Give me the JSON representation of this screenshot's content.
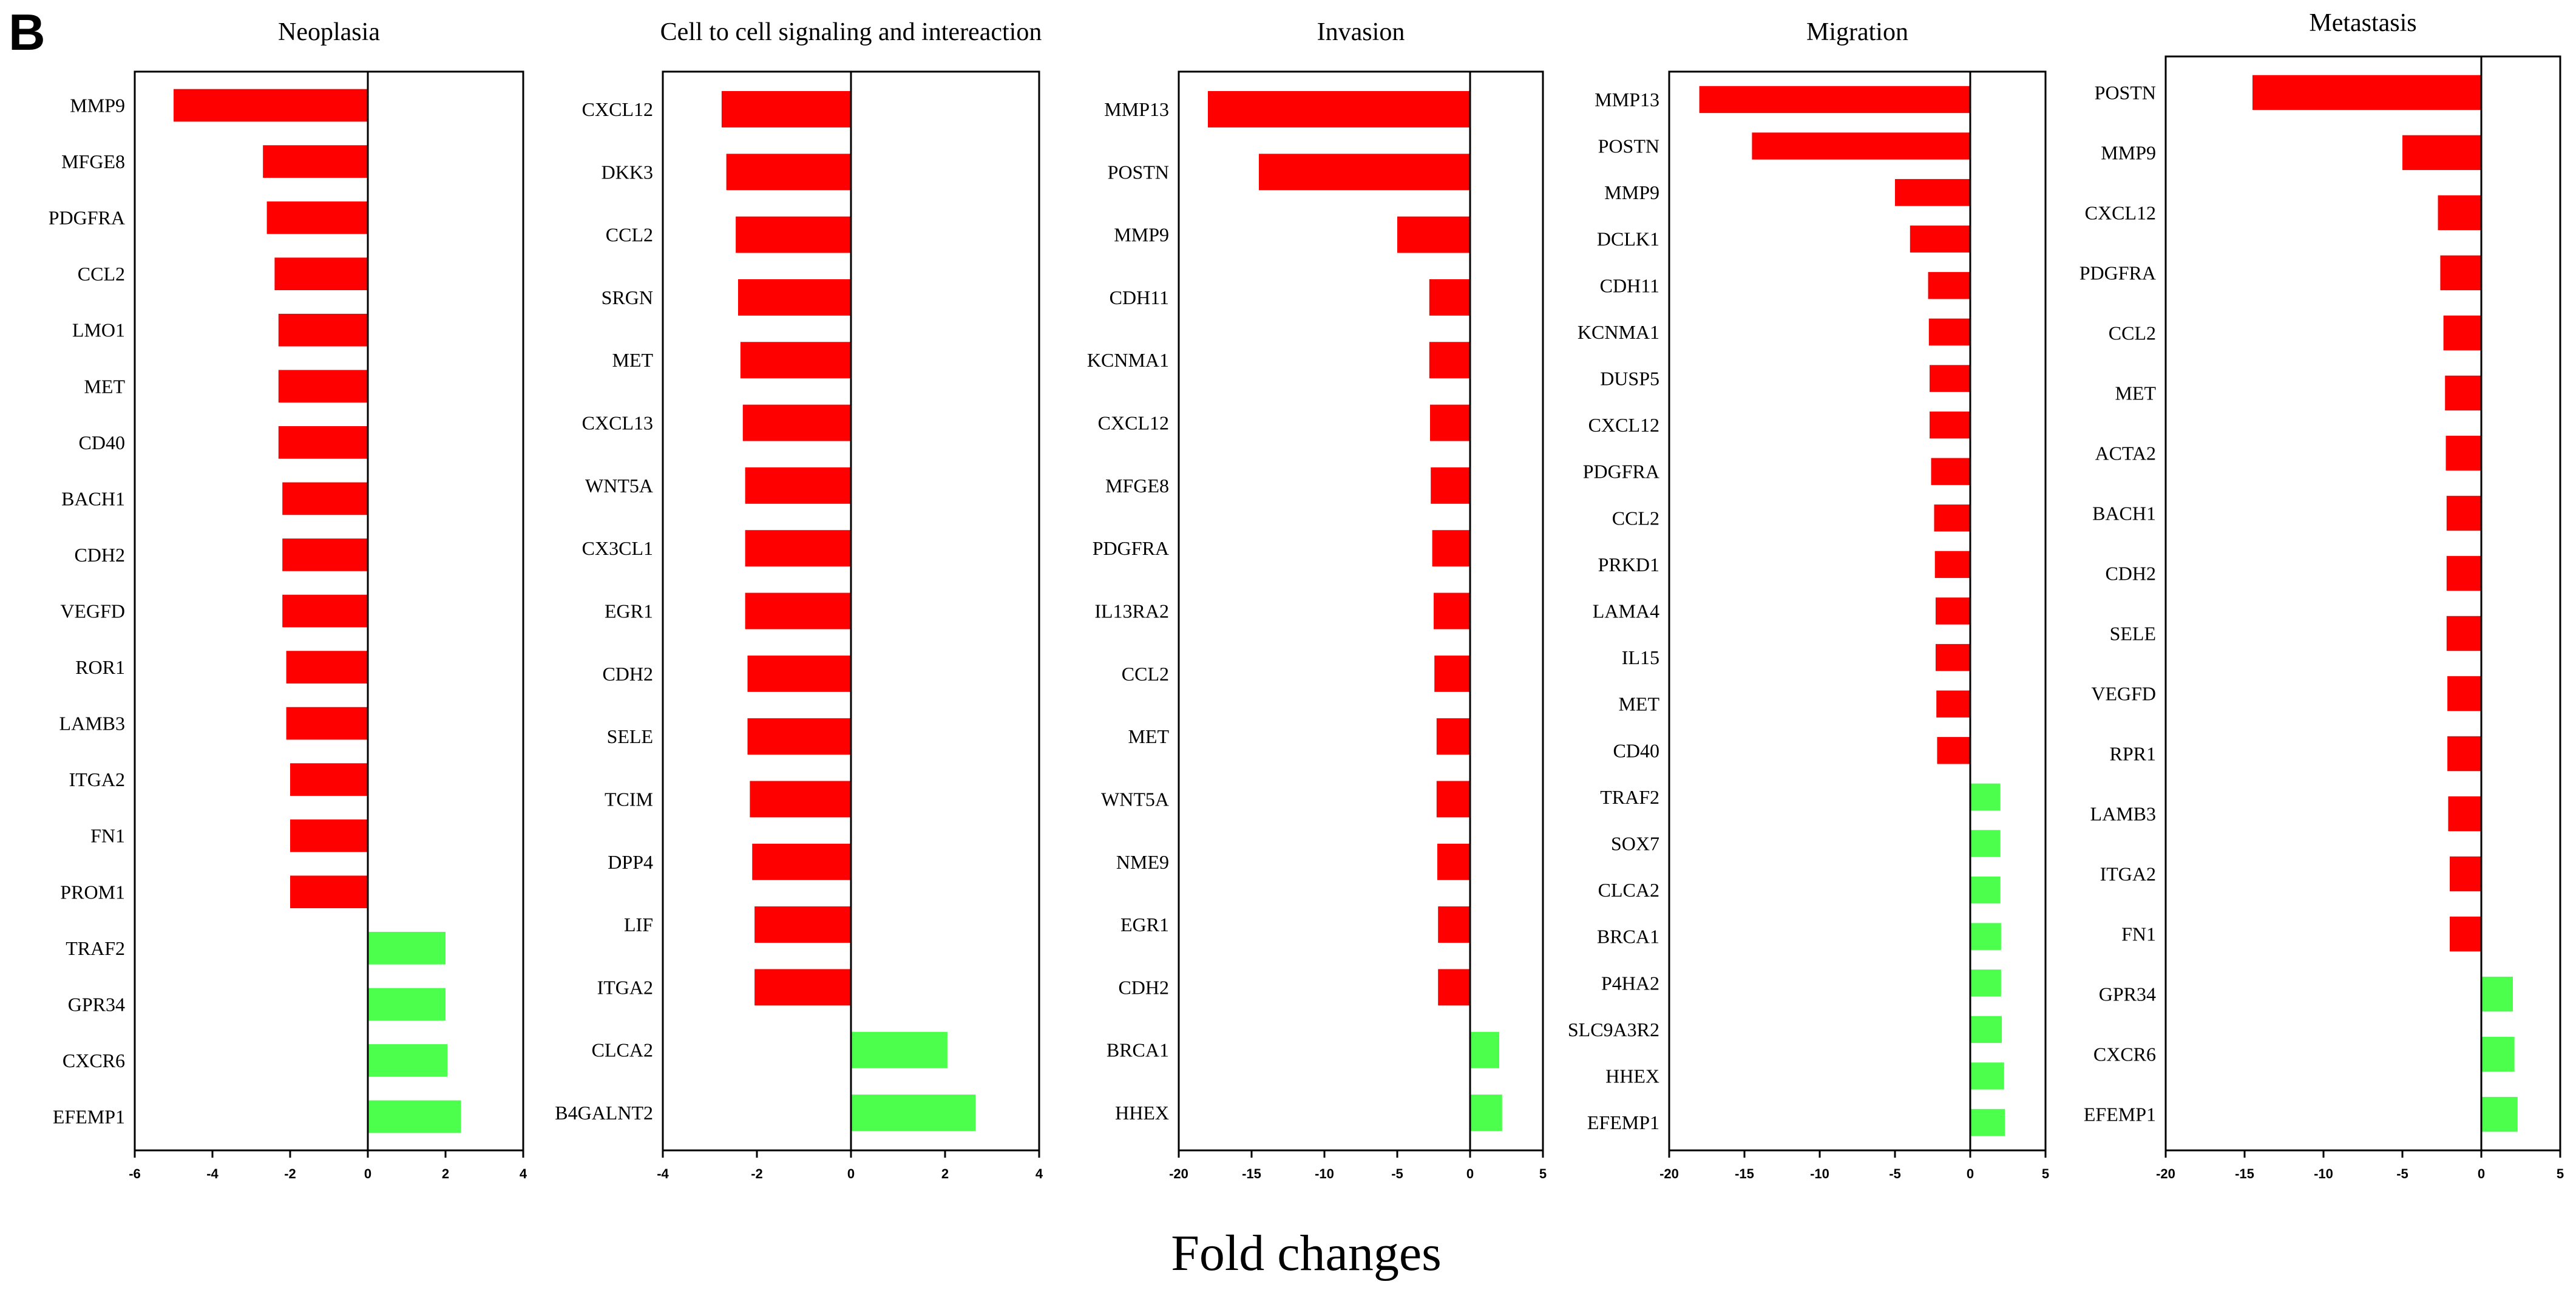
{
  "panel_letter": "B",
  "x_axis_title": "Fold changes",
  "colors": {
    "negative": "#ff0000",
    "positive": "#4dff4d",
    "axis": "#000000"
  },
  "chart_data": [
    {
      "type": "bar",
      "orientation": "horizontal",
      "title": "Neoplasia",
      "xlim": [
        -6,
        4
      ],
      "xticks": [
        -6,
        -4,
        -2,
        0,
        2,
        4
      ],
      "categories": [
        "MMP9",
        "MFGE8",
        "PDGFRA",
        "CCL2",
        "LMO1",
        "MET",
        "CD40",
        "BACH1",
        "CDH2",
        "VEGFD",
        "ROR1",
        "LAMB3",
        "ITGA2",
        "FN1",
        "PROM1",
        "TRAF2",
        "GPR34",
        "CXCR6",
        "EFEMP1"
      ],
      "values": [
        -5.0,
        -2.7,
        -2.6,
        -2.4,
        -2.3,
        -2.3,
        -2.3,
        -2.2,
        -2.2,
        -2.2,
        -2.1,
        -2.1,
        -2.0,
        -2.0,
        -2.0,
        2.0,
        2.0,
        2.05,
        2.4
      ]
    },
    {
      "type": "bar",
      "orientation": "horizontal",
      "title": "Cell to cell signaling and intereaction",
      "xlim": [
        -4,
        4
      ],
      "xticks": [
        -4,
        -2,
        0,
        2,
        4
      ],
      "categories": [
        "CXCL12",
        "DKK3",
        "CCL2",
        "SRGN",
        "MET",
        "CXCL13",
        "WNT5A",
        "CX3CL1",
        "EGR1",
        "CDH2",
        "SELE",
        "TCIM",
        "DPP4",
        "LIF",
        "ITGA2",
        "CLCA2",
        "B4GALNT2"
      ],
      "values": [
        -2.75,
        -2.65,
        -2.45,
        -2.4,
        -2.35,
        -2.3,
        -2.25,
        -2.25,
        -2.25,
        -2.2,
        -2.2,
        -2.15,
        -2.1,
        -2.05,
        -2.05,
        2.05,
        2.65
      ]
    },
    {
      "type": "bar",
      "orientation": "horizontal",
      "title": "Invasion",
      "xlim": [
        -20,
        5
      ],
      "xticks": [
        -20,
        -15,
        -10,
        -5,
        0,
        5
      ],
      "categories": [
        "MMP13",
        "POSTN",
        "MMP9",
        "CDH11",
        "KCNMA1",
        "CXCL12",
        "MFGE8",
        "PDGFRA",
        "IL13RA2",
        "CCL2",
        "MET",
        "WNT5A",
        "NME9",
        "EGR1",
        "CDH2",
        "BRCA1",
        "HHEX"
      ],
      "values": [
        -18.0,
        -14.5,
        -5.0,
        -2.8,
        -2.8,
        -2.75,
        -2.7,
        -2.6,
        -2.5,
        -2.45,
        -2.3,
        -2.3,
        -2.25,
        -2.2,
        -2.2,
        2.0,
        2.2
      ]
    },
    {
      "type": "bar",
      "orientation": "horizontal",
      "title": "Migration",
      "xlim": [
        -20,
        5
      ],
      "xticks": [
        -20,
        -15,
        -10,
        -5,
        0,
        5
      ],
      "categories": [
        "MMP13",
        "POSTN",
        "MMP9",
        "DCLK1",
        "CDH11",
        "KCNMA1",
        "DUSP5",
        "CXCL12",
        "PDGFRA",
        "CCL2",
        "PRKD1",
        "LAMA4",
        "IL15",
        "MET",
        "CD40",
        "TRAF2",
        "SOX7",
        "CLCA2",
        "BRCA1",
        "P4HA2",
        "SLC9A3R2",
        "HHEX",
        "EFEMP1"
      ],
      "values": [
        -18.0,
        -14.5,
        -5.0,
        -4.0,
        -2.8,
        -2.75,
        -2.7,
        -2.7,
        -2.6,
        -2.4,
        -2.35,
        -2.3,
        -2.3,
        -2.25,
        -2.2,
        2.0,
        2.0,
        2.0,
        2.05,
        2.05,
        2.1,
        2.25,
        2.3
      ]
    },
    {
      "type": "bar",
      "orientation": "horizontal",
      "title": "Metastasis",
      "xlim": [
        -20,
        5
      ],
      "xticks": [
        -20,
        -15,
        -10,
        -5,
        0,
        5
      ],
      "categories": [
        "POSTN",
        "MMP9",
        "CXCL12",
        "PDGFRA",
        "CCL2",
        "MET",
        "ACTA2",
        "BACH1",
        "CDH2",
        "SELE",
        "VEGFD",
        "RPR1",
        "LAMB3",
        "ITGA2",
        "FN1",
        "GPR34",
        "CXCR6",
        "EFEMP1"
      ],
      "values": [
        -14.5,
        -5.0,
        -2.75,
        -2.6,
        -2.4,
        -2.3,
        -2.25,
        -2.2,
        -2.2,
        -2.2,
        -2.15,
        -2.15,
        -2.1,
        -2.0,
        -2.0,
        2.0,
        2.1,
        2.3
      ]
    }
  ]
}
